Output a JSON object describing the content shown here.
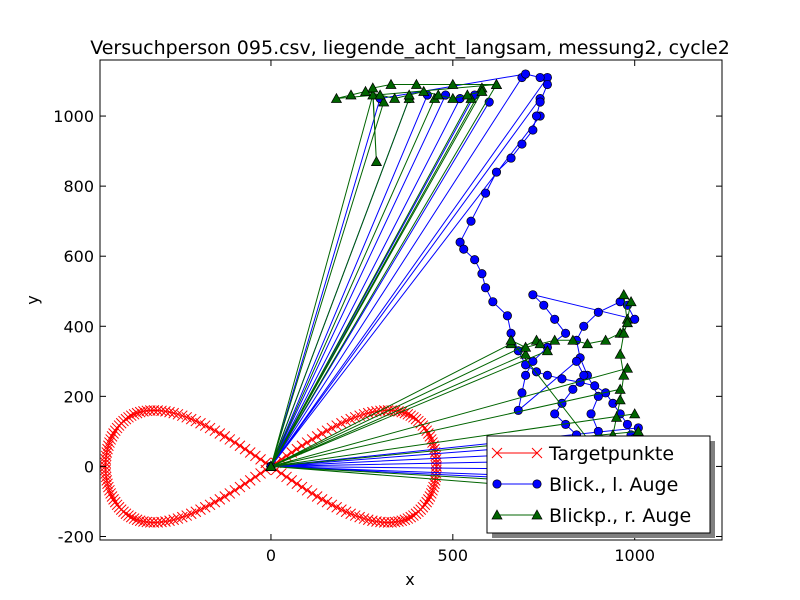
{
  "chart_data": {
    "type": "line",
    "title": "Versuchperson 095.csv, liegende_acht_langsam, messung2, cycle2",
    "xlabel": "x",
    "ylabel": "y",
    "xlim": [
      -470,
      1240
    ],
    "ylim": [
      -210,
      1160
    ],
    "x_ticks": [
      0,
      500,
      1000
    ],
    "y_ticks": [
      -200,
      0,
      200,
      400,
      600,
      800,
      1000
    ],
    "grid": false,
    "legend_position": "lower right",
    "series": [
      {
        "name": "Targetpunkte",
        "color": "#ff0000",
        "marker": "x",
        "shape": "lemniscate",
        "a": 455,
        "b": 160,
        "points_count": 200
      },
      {
        "name": "Blick., l. Auge",
        "color": "#0000ff",
        "marker": "o",
        "points": [
          [
            0,
            0
          ],
          [
            690,
            1110
          ],
          [
            0,
            0
          ],
          [
            760,
            1110
          ],
          [
            0,
            0
          ],
          [
            740,
            1050
          ],
          [
            0,
            0
          ],
          [
            740,
            1000
          ],
          [
            0,
            0
          ],
          [
            600,
            1040
          ],
          [
            0,
            0
          ],
          [
            560,
            1060
          ],
          [
            0,
            0
          ],
          [
            520,
            1050
          ],
          [
            0,
            0
          ],
          [
            480,
            1060
          ],
          [
            0,
            0
          ],
          [
            430,
            1060
          ],
          [
            0,
            0
          ],
          [
            380,
            1050
          ],
          [
            0,
            0
          ],
          [
            300,
            1050
          ],
          [
            700,
            1120
          ],
          [
            740,
            1110
          ],
          [
            760,
            1090
          ],
          [
            740,
            1040
          ],
          [
            730,
            1000
          ],
          [
            720,
            960
          ],
          [
            690,
            920
          ],
          [
            660,
            880
          ],
          [
            620,
            840
          ],
          [
            590,
            780
          ],
          [
            550,
            700
          ],
          [
            520,
            640
          ],
          [
            530,
            620
          ],
          [
            560,
            590
          ],
          [
            580,
            550
          ],
          [
            590,
            510
          ],
          [
            610,
            470
          ],
          [
            650,
            430
          ],
          [
            660,
            380
          ],
          [
            680,
            330
          ],
          [
            700,
            290
          ],
          [
            730,
            270
          ],
          [
            760,
            260
          ],
          [
            800,
            250
          ],
          [
            850,
            240
          ],
          [
            890,
            230
          ],
          [
            920,
            210
          ],
          [
            940,
            180
          ],
          [
            960,
            150
          ],
          [
            980,
            120
          ],
          [
            990,
            90
          ],
          [
            1000,
            60
          ],
          [
            1010,
            30
          ],
          [
            1020,
            0
          ],
          [
            1040,
            -20
          ],
          [
            1060,
            -40
          ],
          [
            1200,
            -60
          ],
          [
            0,
            0
          ],
          [
            1010,
            110
          ],
          [
            0,
            0
          ],
          [
            1000,
            80
          ],
          [
            0,
            0
          ],
          [
            990,
            50
          ],
          [
            0,
            0
          ],
          [
            980,
            20
          ],
          [
            0,
            0
          ],
          [
            1000,
            -10
          ],
          [
            0,
            0
          ],
          [
            1030,
            -40
          ],
          [
            900,
            100
          ],
          [
            880,
            150
          ],
          [
            900,
            200
          ],
          [
            870,
            260
          ],
          [
            850,
            310
          ],
          [
            840,
            360
          ],
          [
            860,
            400
          ],
          [
            900,
            440
          ],
          [
            960,
            470
          ],
          [
            980,
            460
          ],
          [
            1000,
            420
          ],
          [
            720,
            490
          ],
          [
            750,
            460
          ],
          [
            780,
            420
          ],
          [
            810,
            380
          ],
          [
            760,
            340
          ],
          [
            720,
            300
          ],
          [
            700,
            260
          ],
          [
            690,
            210
          ],
          [
            680,
            160
          ],
          [
            840,
            300
          ],
          [
            860,
            260
          ],
          [
            830,
            220
          ],
          [
            800,
            180
          ],
          [
            780,
            150
          ],
          [
            810,
            120
          ],
          [
            840,
            90
          ],
          [
            880,
            60
          ],
          [
            910,
            30
          ],
          [
            940,
            0
          ]
        ]
      },
      {
        "name": "Blickp., r. Auge",
        "color": "#006400",
        "marker": "^",
        "points": [
          [
            0,
            0
          ],
          [
            580,
            1080
          ],
          [
            0,
            0
          ],
          [
            620,
            1090
          ],
          [
            0,
            0
          ],
          [
            550,
            1050
          ],
          [
            0,
            0
          ],
          [
            450,
            1050
          ],
          [
            0,
            0
          ],
          [
            380,
            1050
          ],
          [
            0,
            0
          ],
          [
            310,
            1040
          ],
          [
            0,
            0
          ],
          [
            280,
            1060
          ],
          [
            290,
            870
          ],
          [
            280,
            1080
          ],
          [
            330,
            1090
          ],
          [
            400,
            1090
          ],
          [
            500,
            1090
          ],
          [
            620,
            1090
          ],
          [
            180,
            1050
          ],
          [
            220,
            1060
          ],
          [
            260,
            1070
          ],
          [
            300,
            1060
          ],
          [
            340,
            1050
          ],
          [
            380,
            1060
          ],
          [
            420,
            1070
          ],
          [
            460,
            1060
          ],
          [
            500,
            1050
          ],
          [
            540,
            1060
          ],
          [
            580,
            1070
          ],
          [
            0,
            0
          ],
          [
            660,
            350
          ],
          [
            0,
            0
          ],
          [
            700,
            320
          ],
          [
            0,
            0
          ],
          [
            730,
            360
          ],
          [
            0,
            0
          ],
          [
            760,
            330
          ],
          [
            0,
            0
          ],
          [
            980,
            280
          ],
          [
            0,
            0
          ],
          [
            960,
            220
          ],
          [
            0,
            0
          ],
          [
            1000,
            150
          ],
          [
            0,
            0
          ],
          [
            1010,
            100
          ],
          [
            0,
            0
          ],
          [
            1000,
            -60
          ],
          [
            0,
            0
          ],
          [
            990,
            -80
          ],
          [
            660,
            360
          ],
          [
            700,
            340
          ],
          [
            740,
            350
          ],
          [
            780,
            360
          ],
          [
            830,
            360
          ],
          [
            870,
            350
          ],
          [
            920,
            360
          ],
          [
            960,
            380
          ],
          [
            980,
            420
          ],
          [
            990,
            470
          ],
          [
            970,
            490
          ],
          [
            980,
            410
          ],
          [
            970,
            380
          ],
          [
            960,
            320
          ],
          [
            970,
            260
          ],
          [
            960,
            190
          ],
          [
            950,
            140
          ],
          [
            940,
            90
          ],
          [
            930,
            40
          ],
          [
            960,
            -10
          ],
          [
            990,
            -50
          ]
        ]
      }
    ]
  }
}
